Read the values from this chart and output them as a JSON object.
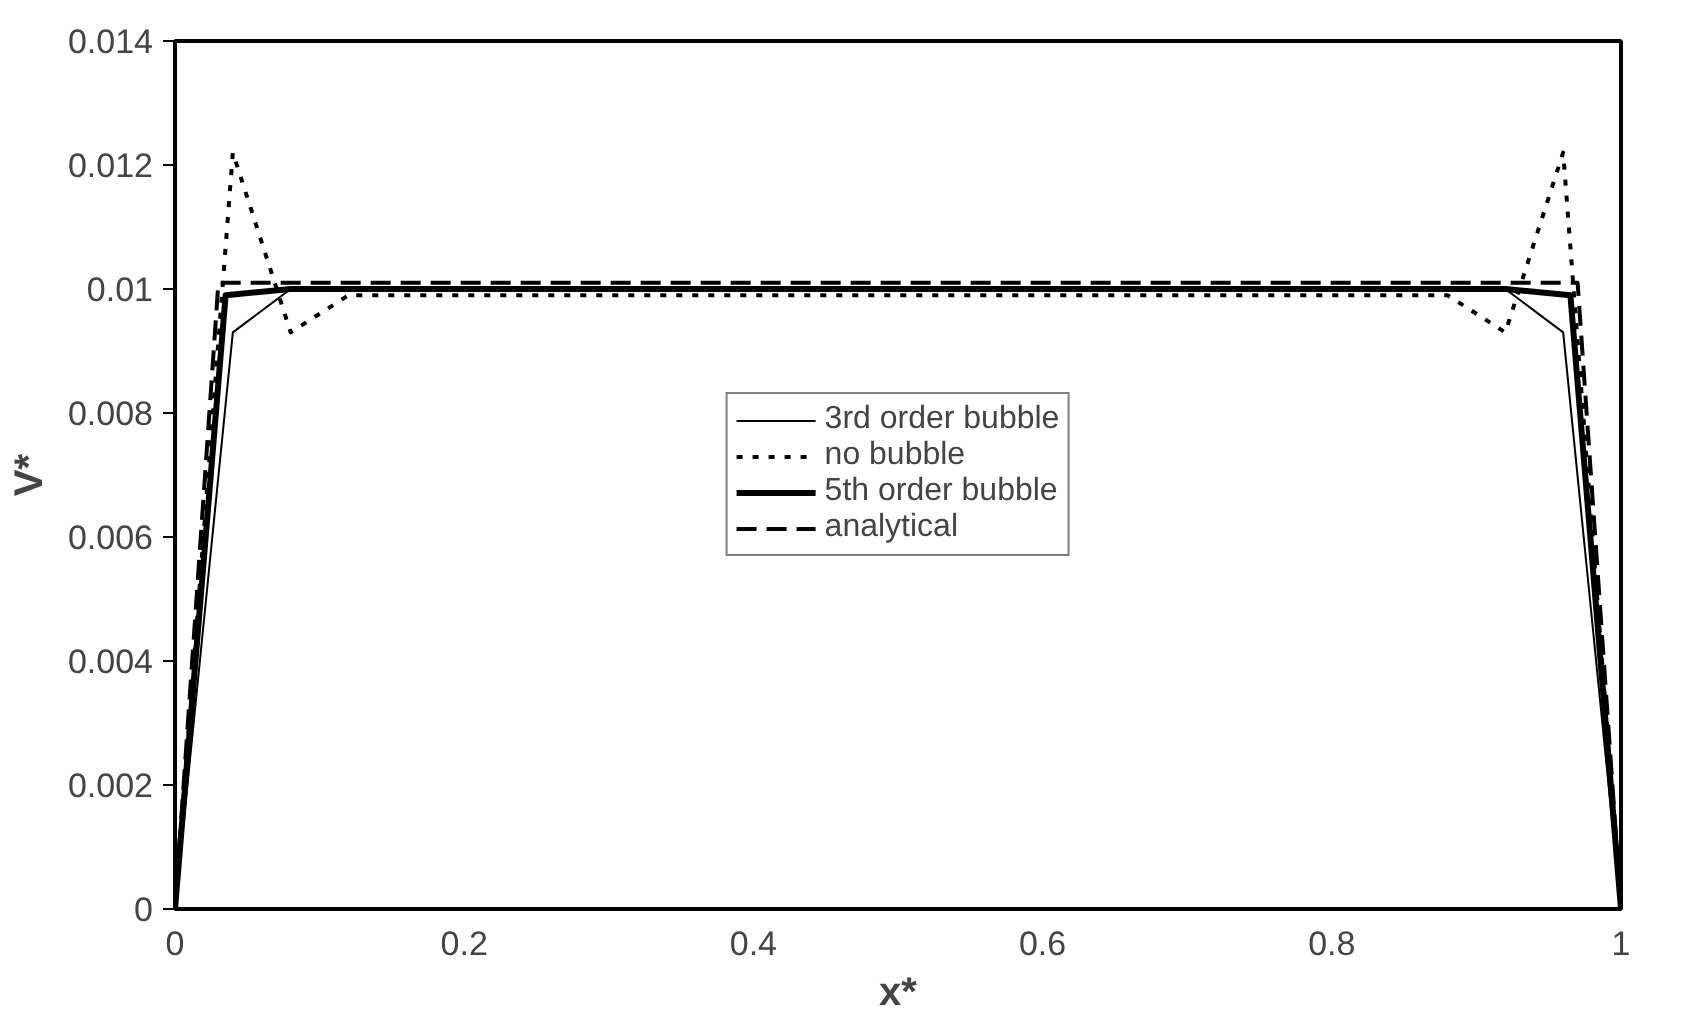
{
  "chart_data": {
    "type": "line",
    "xlabel": "x*",
    "ylabel": "V*",
    "xlim": [
      0,
      1
    ],
    "ylim": [
      0,
      0.014
    ],
    "xticks": [
      0,
      0.2,
      0.4,
      0.6,
      0.8,
      1
    ],
    "yticks": [
      0,
      0.002,
      0.004,
      0.006,
      0.008,
      0.01,
      0.012,
      0.014
    ],
    "grid": false,
    "legend": "center",
    "series": [
      {
        "name": "3rd order bubble",
        "color": "#000000",
        "line_style": "solid",
        "x": [
          0,
          0.04,
          0.08,
          0.5,
          0.92,
          0.96,
          1
        ],
        "values": [
          0,
          0.0093,
          0.01,
          0.01,
          0.01,
          0.0093,
          0
        ]
      },
      {
        "name": "no bubble",
        "color": "#000000",
        "line_style": "dotted",
        "x": [
          0,
          0.04,
          0.08,
          0.12,
          0.5,
          0.88,
          0.92,
          0.96,
          1
        ],
        "values": [
          0,
          0.0122,
          0.0093,
          0.0099,
          0.0099,
          0.0099,
          0.0093,
          0.0122,
          0
        ]
      },
      {
        "name": "5th order bubble",
        "color": "#000000",
        "line_style": "solid",
        "x": [
          0,
          0.035,
          0.08,
          0.5,
          0.92,
          0.965,
          1
        ],
        "values": [
          0,
          0.0099,
          0.01,
          0.01,
          0.01,
          0.0099,
          0
        ]
      },
      {
        "name": "analytical",
        "color": "#000000",
        "line_style": "dashed",
        "x": [
          0,
          0.03,
          0.5,
          0.97,
          1
        ],
        "values": [
          0,
          0.0101,
          0.0101,
          0.0101,
          0
        ]
      }
    ]
  }
}
